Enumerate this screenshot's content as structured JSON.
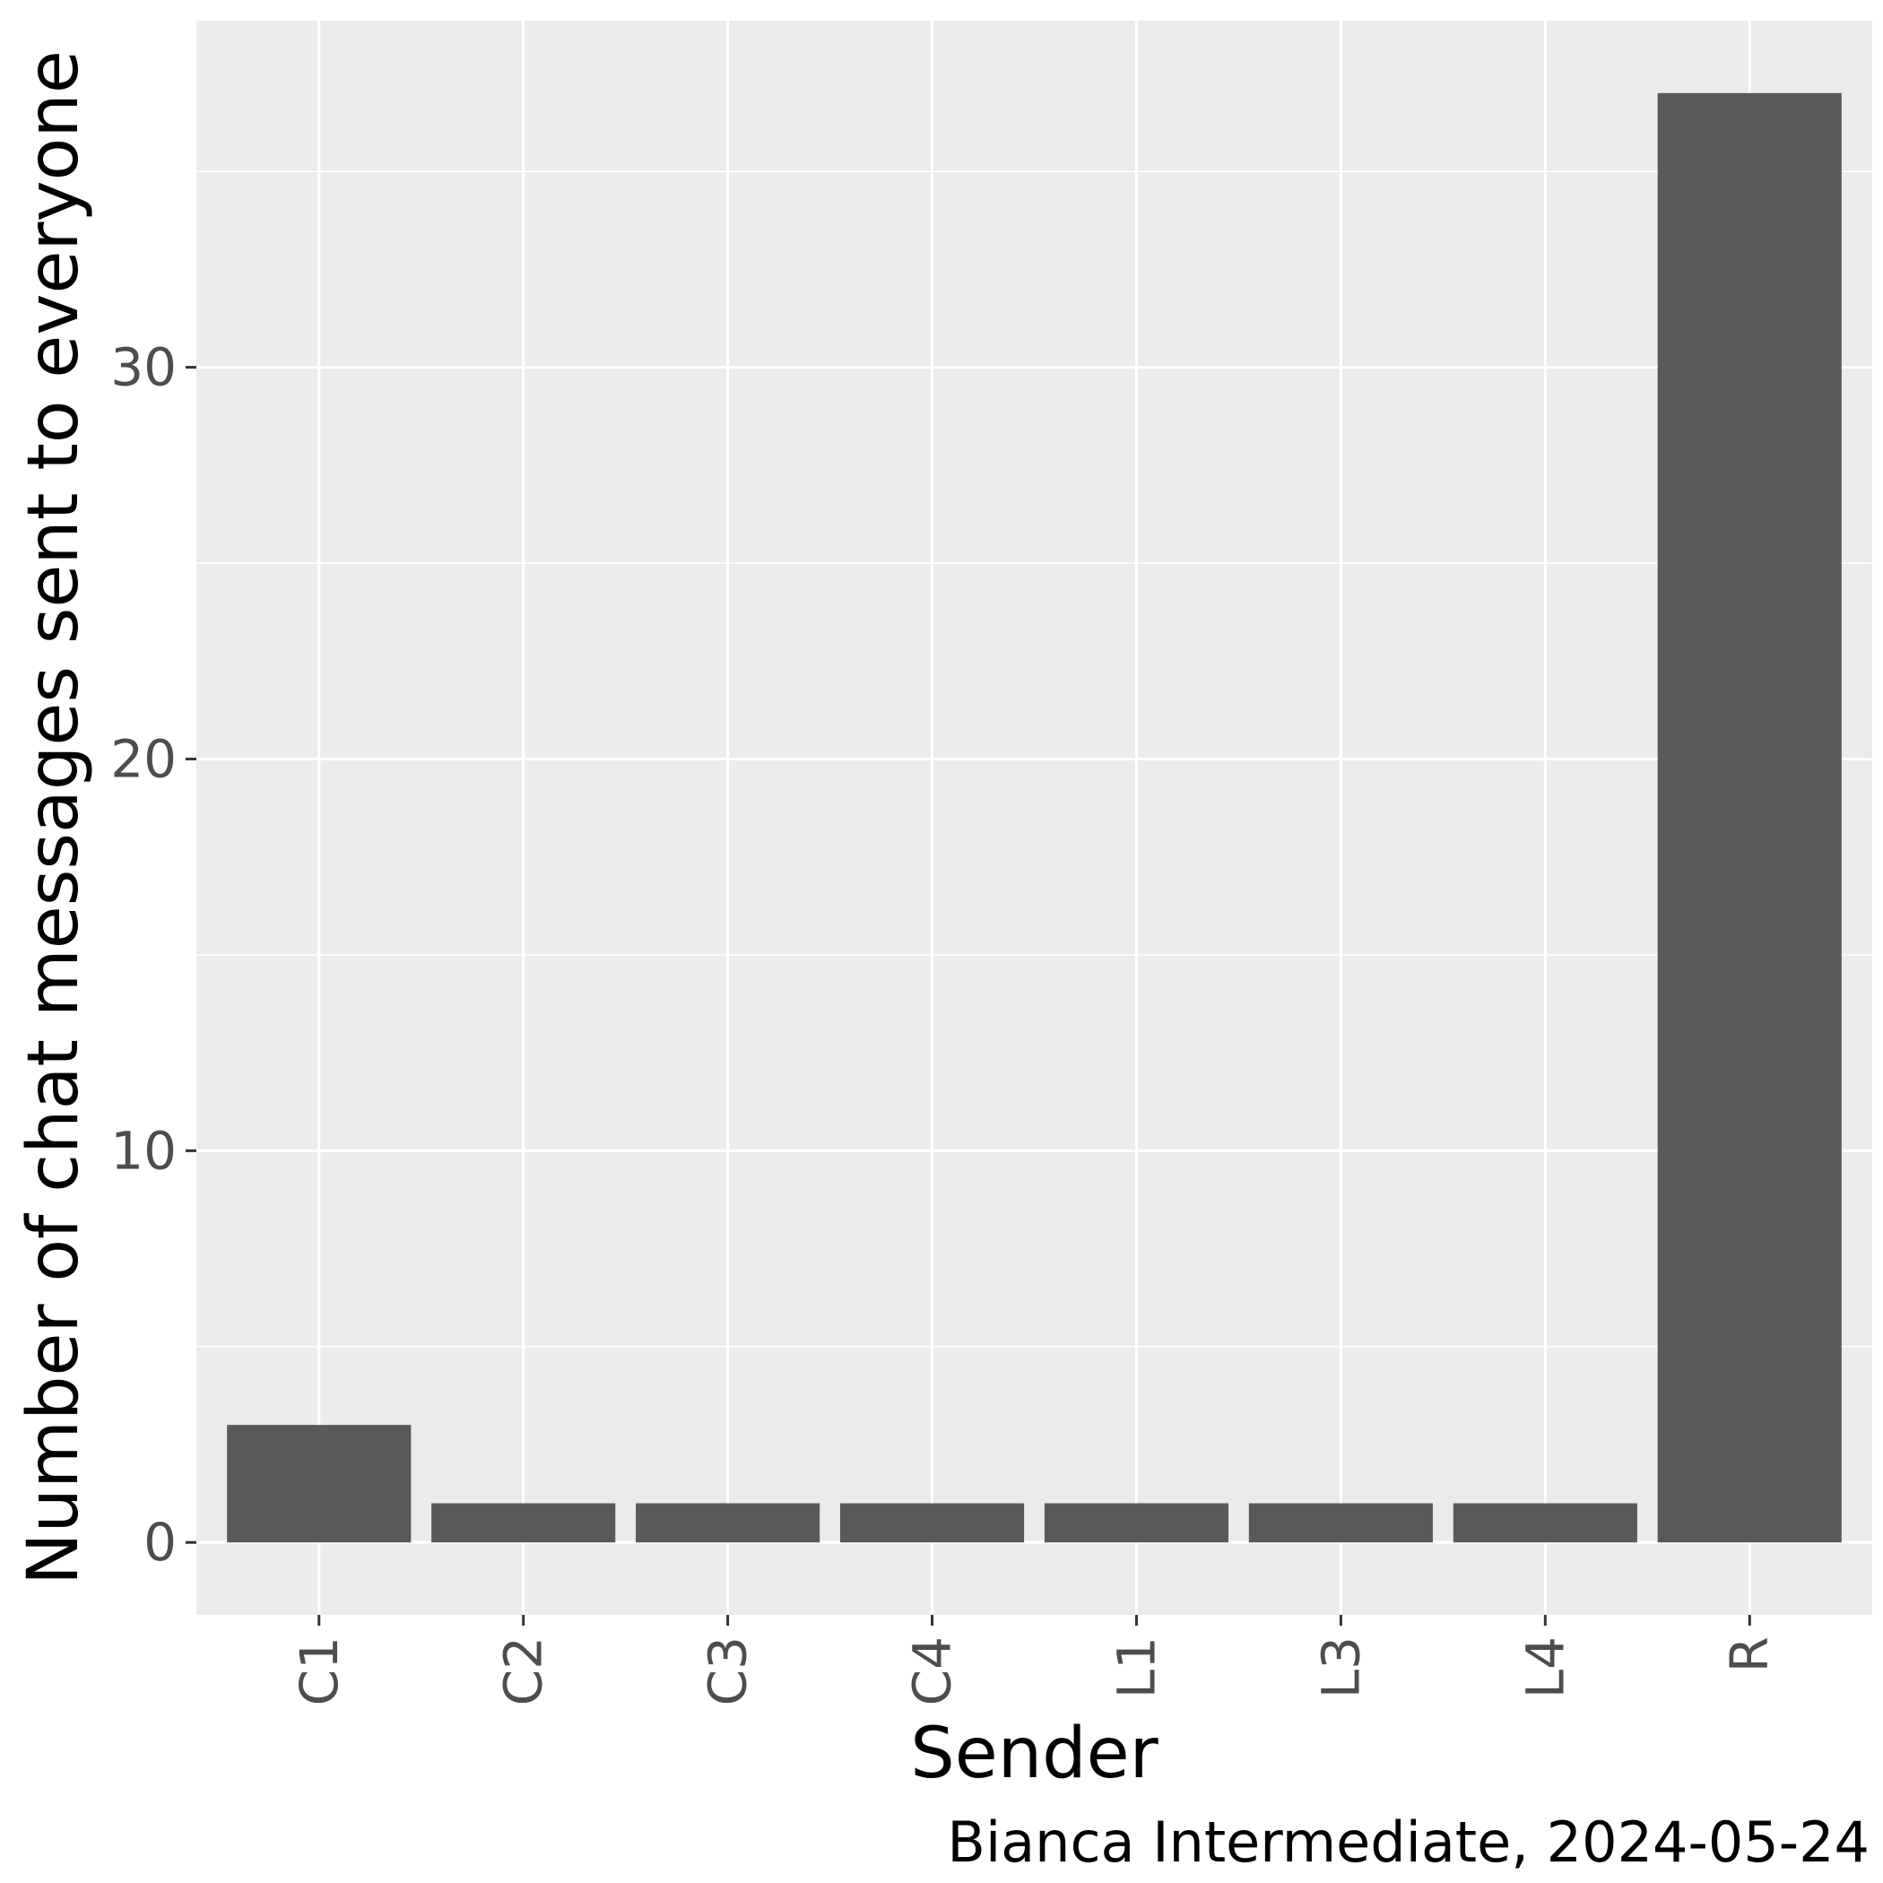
{
  "chart_data": {
    "type": "bar",
    "categories": [
      "C1",
      "C2",
      "C3",
      "C4",
      "L1",
      "L3",
      "L4",
      "R"
    ],
    "values": [
      3,
      1,
      1,
      1,
      1,
      1,
      1,
      37
    ],
    "xlabel": "Sender",
    "ylabel": "Number of chat messages sent to everyone",
    "caption": "Bianca Intermediate, 2024-05-24",
    "ylim": [
      -1.85,
      38.85
    ],
    "yticks": [
      {
        "value": 0,
        "label": "0"
      },
      {
        "value": 10,
        "label": "10"
      },
      {
        "value": 20,
        "label": "20"
      },
      {
        "value": 30,
        "label": "30"
      }
    ],
    "y_minor_gridlines": [
      5,
      15,
      25,
      35
    ],
    "grid": true,
    "x_tick_rotation": "vertical",
    "colors": {
      "panel_background": "#ebebeb",
      "gridline": "#ffffff",
      "bar_fill": "#595959",
      "tick_text": "#4d4d4d",
      "tick_mark": "#333333",
      "title_text": "#000000"
    }
  }
}
